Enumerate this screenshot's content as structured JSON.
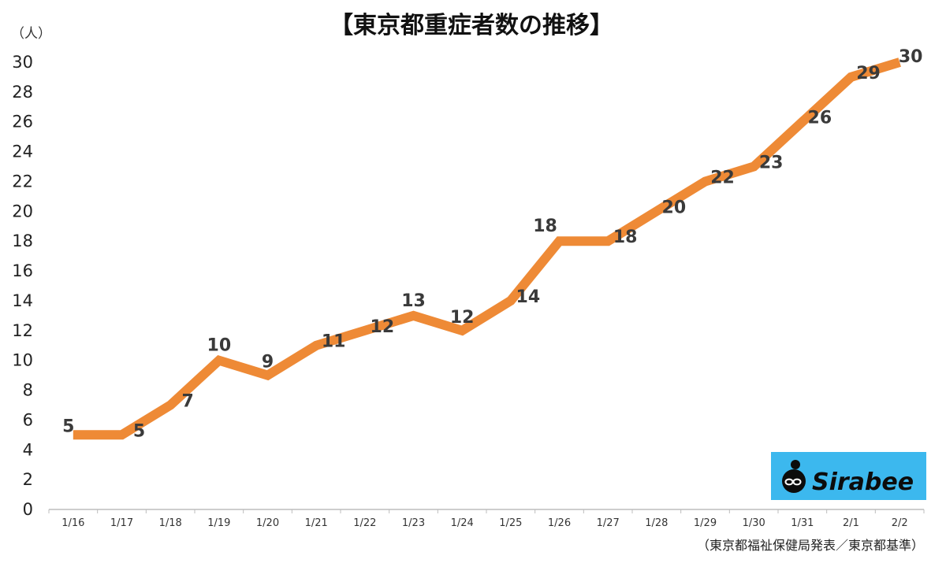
{
  "title": "【東京都重症者数の推移】",
  "unit_label": "（人）",
  "source_note": "（東京都福祉保健局発表／東京都基準）",
  "logo": {
    "text": "Sirabee",
    "bg_color": "#3cb8ee"
  },
  "colors": {
    "line": "#ee8a36",
    "axis": "#bdbdbd",
    "labels": "#3a3a3a"
  },
  "chart_data": {
    "type": "line",
    "title": "【東京都重症者数の推移】",
    "ylabel": "（人）",
    "xlabel": "",
    "categories": [
      "1/16",
      "1/17",
      "1/18",
      "1/19",
      "1/20",
      "1/21",
      "1/22",
      "1/23",
      "1/24",
      "1/25",
      "1/26",
      "1/27",
      "1/28",
      "1/29",
      "1/30",
      "1/31",
      "2/1",
      "2/2"
    ],
    "series": [
      {
        "values": [
          5,
          5,
          7,
          10,
          9,
          11,
          12,
          13,
          12,
          14,
          18,
          18,
          20,
          22,
          23,
          26,
          29,
          30
        ]
      }
    ],
    "ylim": [
      0,
      30
    ],
    "yticks": [
      0,
      2,
      4,
      6,
      8,
      10,
      12,
      14,
      16,
      18,
      20,
      22,
      24,
      26,
      28,
      30
    ],
    "grid": false,
    "data_labels": true
  }
}
